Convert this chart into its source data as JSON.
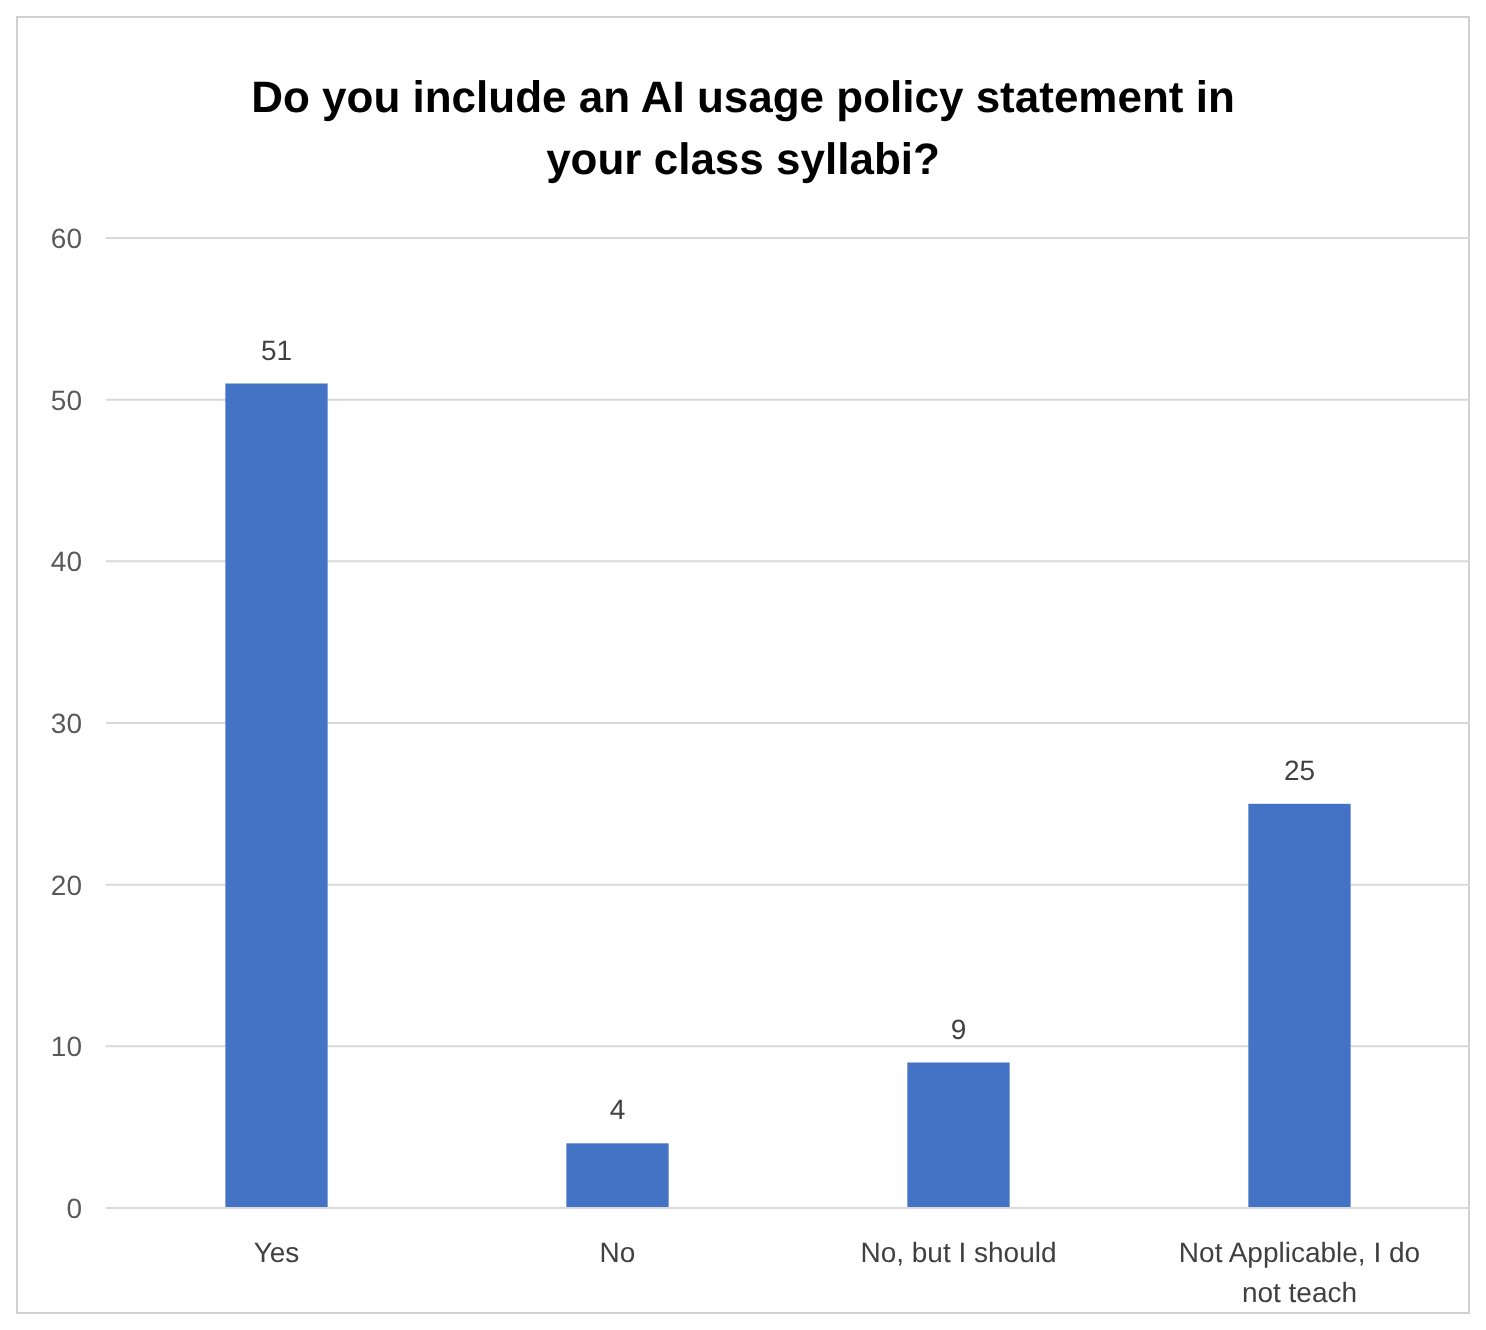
{
  "chart_data": {
    "type": "bar",
    "title": "Do you include an AI usage policy statement in your class syllabi?",
    "categories": [
      "Yes",
      "No",
      "No, but I should",
      "Not Applicable, I do not teach"
    ],
    "values": [
      51,
      4,
      9,
      25
    ],
    "color": "#4472c4",
    "ylim": [
      0,
      60
    ],
    "yticks": [
      0,
      10,
      20,
      30,
      40,
      50,
      60
    ],
    "grid": "y",
    "data_labels": true
  }
}
